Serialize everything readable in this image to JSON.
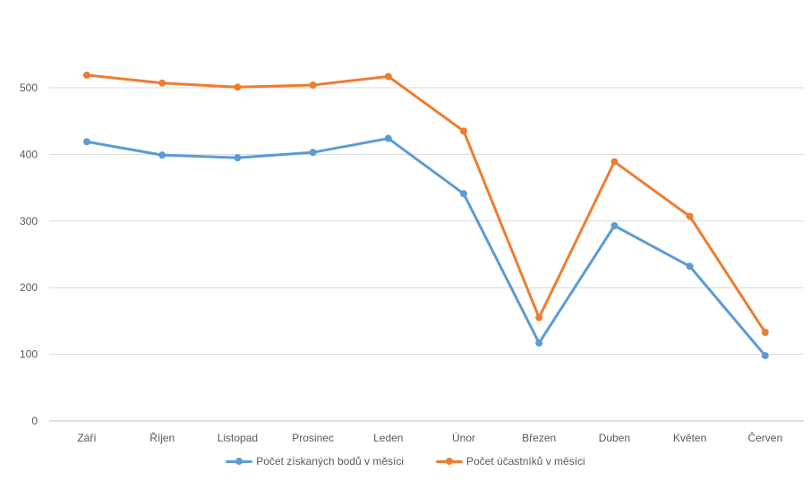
{
  "chart_data": {
    "type": "line",
    "categories": [
      "Září",
      "Říjen",
      "Listopad",
      "Prosinec",
      "Leden",
      "Únor",
      "Březen",
      "Duben",
      "Květen",
      "Červen"
    ],
    "series": [
      {
        "name": "Počet získaných bodů v měsíci",
        "color": "#5b9bd5",
        "values": [
          419,
          399,
          395,
          403,
          424,
          341,
          117,
          293,
          232,
          98
        ]
      },
      {
        "name": "Počet účastníků v měsíci",
        "color": "#ed7d31",
        "values": [
          519,
          507,
          501,
          504,
          517,
          435,
          155,
          389,
          307,
          133
        ]
      }
    ],
    "yticks": [
      0,
      100,
      200,
      300,
      400,
      500
    ],
    "ylim": [
      0,
      600
    ],
    "grid": true,
    "legend_position": "bottom"
  }
}
